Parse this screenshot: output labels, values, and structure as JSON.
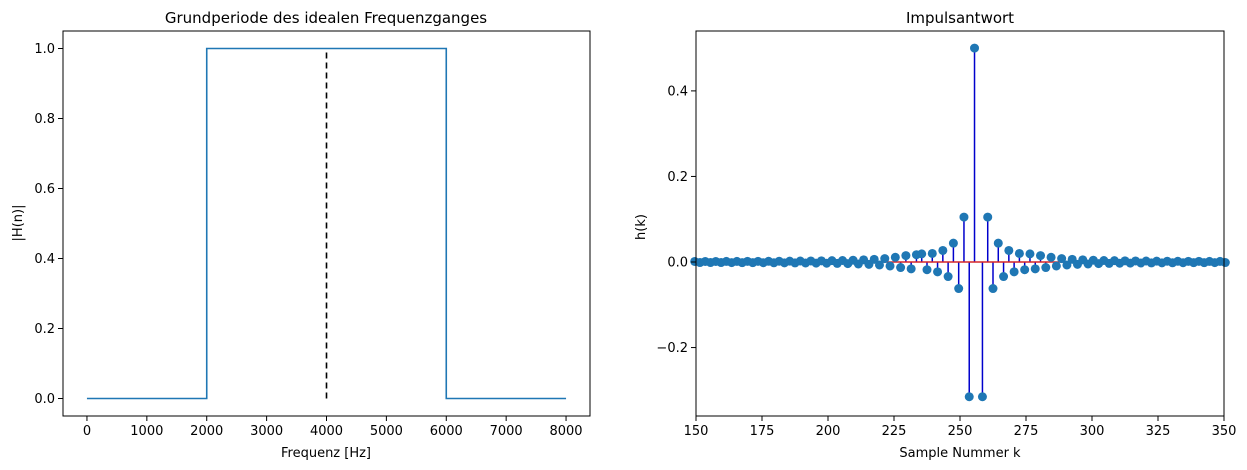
{
  "chart_data": [
    {
      "type": "line",
      "title": "Grundperiode des idealen Frequenzganges",
      "xlabel": "Frequenz [Hz]",
      "ylabel": "|H(n)|",
      "xlim": [
        -400,
        8400
      ],
      "ylim": [
        -0.05,
        1.05
      ],
      "grid": false,
      "x_ticks": [
        "0",
        "1000",
        "2000",
        "3000",
        "4000",
        "5000",
        "6000",
        "7000",
        "8000"
      ],
      "y_ticks": [
        "0.0",
        "0.2",
        "0.4",
        "0.6",
        "0.8",
        "1.0"
      ],
      "series": [
        {
          "color": "#1f77b4",
          "x": [
            0,
            2000,
            2000,
            6000,
            6000,
            8000
          ],
          "y": [
            0,
            0,
            1,
            1,
            0,
            0
          ]
        }
      ],
      "vline": {
        "x": 4000,
        "y": [
          0,
          1
        ],
        "style": "dashed",
        "color": "#000000"
      }
    },
    {
      "type": "scatter",
      "subtype": "stem",
      "title": "Impulsantwort",
      "xlabel": "Sample Nummer k",
      "ylabel": "h(k)",
      "xlim": [
        150,
        350
      ],
      "ylim": [
        -0.36,
        0.54
      ],
      "grid": false,
      "x_ticks": [
        "150",
        "175",
        "200",
        "225",
        "250",
        "275",
        "300",
        "325",
        "350"
      ],
      "y_ticks": [
        "−0.2",
        "0.0",
        "0.2",
        "0.4"
      ],
      "marker_color": "#1f77b4",
      "stem_color": "#0000cc",
      "baseline_color": "#d62728",
      "center": 256.5,
      "points": [
        [
          150,
          0.0012
        ],
        [
          152,
          -0.0012
        ],
        [
          154,
          0.0012
        ],
        [
          156,
          -0.0013
        ],
        [
          158,
          0.0013
        ],
        [
          160,
          -0.0013
        ],
        [
          162,
          0.0014
        ],
        [
          164,
          -0.0014
        ],
        [
          166,
          0.0014
        ],
        [
          168,
          -0.0015
        ],
        [
          170,
          0.0015
        ],
        [
          172,
          -0.0016
        ],
        [
          174,
          0.0016
        ],
        [
          176,
          -0.0017
        ],
        [
          178,
          0.0017
        ],
        [
          180,
          -0.0018
        ],
        [
          182,
          0.0018
        ],
        [
          184,
          -0.0019
        ],
        [
          186,
          0.002
        ],
        [
          188,
          -0.0021
        ],
        [
          190,
          0.0022
        ],
        [
          192,
          -0.0023
        ],
        [
          194,
          0.0024
        ],
        [
          196,
          -0.0026
        ],
        [
          198,
          0.0027
        ],
        [
          200,
          -0.0029
        ],
        [
          202,
          0.0031
        ],
        [
          204,
          -0.0033
        ],
        [
          206,
          0.0035
        ],
        [
          208,
          -0.0038
        ],
        [
          210,
          0.0042
        ],
        [
          212,
          -0.0046
        ],
        [
          214,
          0.005
        ],
        [
          216,
          -0.0055
        ],
        [
          218,
          0.0062
        ],
        [
          220,
          -0.007
        ],
        [
          222,
          0.008
        ],
        [
          224,
          -0.0093
        ],
        [
          226,
          0.011
        ],
        [
          228,
          -0.013
        ],
        [
          230,
          0.015
        ],
        [
          232,
          -0.016
        ],
        [
          234,
          0.017
        ],
        [
          236,
          0.019
        ],
        [
          238,
          -0.018
        ],
        [
          240,
          0.02
        ],
        [
          242,
          -0.023
        ],
        [
          244,
          0.027
        ],
        [
          246,
          -0.034
        ],
        [
          248,
          0.044
        ],
        [
          250,
          -0.062
        ],
        [
          252,
          0.105
        ],
        [
          254,
          -0.315
        ],
        [
          256,
          0.5
        ],
        [
          258,
          -0.315
        ],
        [
          260,
          0.105
        ],
        [
          262,
          -0.062
        ],
        [
          264,
          0.044
        ],
        [
          266,
          -0.034
        ],
        [
          268,
          0.027
        ],
        [
          270,
          -0.023
        ],
        [
          272,
          0.02
        ],
        [
          274,
          -0.018
        ],
        [
          276,
          0.019
        ],
        [
          278,
          -0.016
        ],
        [
          280,
          0.015
        ],
        [
          282,
          -0.013
        ],
        [
          284,
          0.011
        ],
        [
          286,
          -0.0093
        ],
        [
          288,
          0.008
        ],
        [
          290,
          -0.007
        ],
        [
          292,
          0.0062
        ],
        [
          294,
          -0.0055
        ],
        [
          296,
          0.005
        ],
        [
          298,
          -0.0046
        ],
        [
          300,
          0.0042
        ],
        [
          302,
          -0.0038
        ],
        [
          304,
          0.0035
        ],
        [
          306,
          -0.0033
        ],
        [
          308,
          0.0031
        ],
        [
          310,
          -0.0029
        ],
        [
          312,
          0.0027
        ],
        [
          314,
          -0.0026
        ],
        [
          316,
          0.0024
        ],
        [
          318,
          -0.0023
        ],
        [
          320,
          0.0022
        ],
        [
          322,
          -0.0021
        ],
        [
          324,
          0.002
        ],
        [
          326,
          -0.0019
        ],
        [
          328,
          0.0018
        ],
        [
          330,
          -0.0018
        ],
        [
          332,
          0.0017
        ],
        [
          334,
          -0.0017
        ],
        [
          336,
          0.0016
        ],
        [
          338,
          -0.0016
        ],
        [
          340,
          0.0015
        ],
        [
          342,
          -0.0015
        ],
        [
          344,
          0.0014
        ],
        [
          346,
          -0.0014
        ],
        [
          348,
          0.0014
        ],
        [
          350,
          -0.0013
        ]
      ]
    }
  ]
}
